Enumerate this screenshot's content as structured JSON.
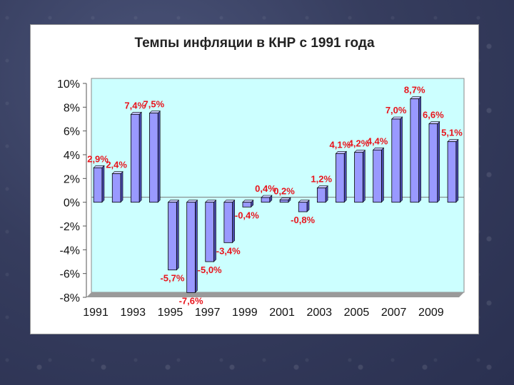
{
  "chart_data": {
    "type": "bar",
    "title": "Темпы инфляции в КНР с 1991 года",
    "categories": [
      "1991",
      "1992",
      "1993",
      "1994",
      "1995",
      "1996",
      "1997",
      "1998",
      "1999",
      "2000",
      "2001",
      "2002",
      "2003",
      "2004",
      "2005",
      "2006",
      "2007",
      "2008",
      "2009",
      "2010"
    ],
    "x_tick_labels": [
      "1991",
      "1993",
      "1995",
      "1997",
      "1999",
      "2001",
      "2003",
      "2005",
      "2007",
      "2009"
    ],
    "values": [
      2.9,
      2.4,
      7.4,
      7.5,
      -5.7,
      -7.6,
      -5.0,
      -3.4,
      -0.4,
      0.4,
      0.2,
      -0.8,
      1.2,
      4.1,
      4.2,
      4.4,
      7.0,
      8.7,
      6.6,
      5.1
    ],
    "data_labels": [
      "2,9%",
      "2,4%",
      "7,4%",
      "7,5%",
      "-5,7%",
      "-7,6%",
      "-5,0%",
      "-3,4%",
      "-0,4%",
      "0,4%",
      "0,2%",
      "-0,8%",
      "1,2%",
      "4,1%",
      "4,2%",
      "4,4%",
      "7,0%",
      "8,7%",
      "6,6%",
      "5,1%"
    ],
    "y_tick_labels": [
      "10%",
      "8%",
      "6%",
      "4%",
      "2%",
      "0%",
      "-2%",
      "-4%",
      "-6%",
      "-8%"
    ],
    "ylim": [
      -8,
      10
    ],
    "grid": false,
    "colors": {
      "bar_front": "#9999ff",
      "bar_side": "#4b4bb0",
      "bar_top": "#c8c8ff",
      "wall": "#ccffff",
      "floor": "#9a9a9a",
      "label": "#e8141c"
    }
  }
}
